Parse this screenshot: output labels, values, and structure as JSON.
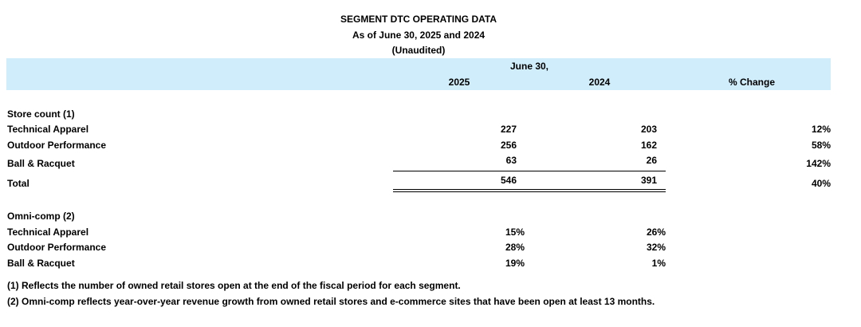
{
  "title": {
    "line1": "SEGMENT DTC OPERATING DATA",
    "line2": "As of June 30, 2025 and 2024",
    "line3": "(Unaudited)"
  },
  "header": {
    "group_label": "June 30,",
    "col_2025": "2025",
    "col_2024": "2024",
    "col_change": "% Change"
  },
  "store_count": {
    "heading": "Store count (1)",
    "rows": [
      {
        "label": "Technical Apparel",
        "v2025": "227",
        "v2024": "203",
        "change": "12%"
      },
      {
        "label": "Outdoor Performance",
        "v2025": "256",
        "v2024": "162",
        "change": "58%"
      },
      {
        "label": "Ball & Racquet",
        "v2025": "63",
        "v2024": "26",
        "change": "142%"
      }
    ],
    "total": {
      "label": "Total",
      "v2025": "546",
      "v2024": "391",
      "change": "40%"
    }
  },
  "omni_comp": {
    "heading": "Omni-comp (2)",
    "rows": [
      {
        "label": "Technical Apparel",
        "v2025": "15%",
        "v2024": "26%"
      },
      {
        "label": "Outdoor Performance",
        "v2025": "28%",
        "v2024": "32%"
      },
      {
        "label": "Ball & Racquet",
        "v2025": "19%",
        "v2024": "1%"
      }
    ]
  },
  "footnotes": [
    "(1) Reflects the number of owned retail stores open at the end of the fiscal period for each segment.",
    "(2) Omni-comp reflects year-over-year revenue growth from owned retail stores and e-commerce sites that have been open at least 13 months."
  ]
}
